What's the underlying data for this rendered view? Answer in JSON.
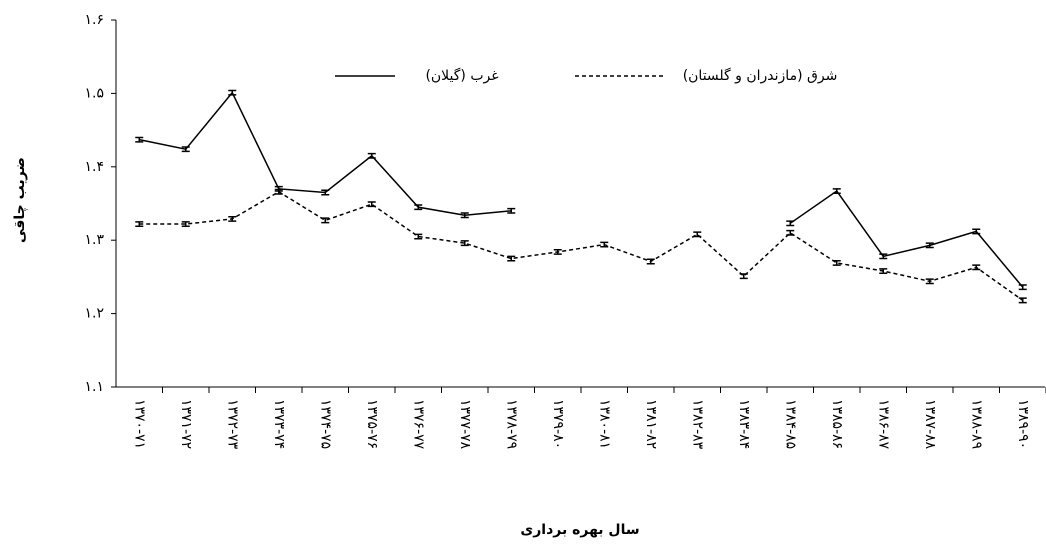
{
  "chart_data": {
    "type": "line",
    "y_label": "ضریب چاقی",
    "x_label": "سال بهره برداری",
    "categories": [
      "۱۳۷۰-۷۱",
      "۱۳۷۱-۷۲",
      "۱۳۷۲-۷۳",
      "۱۳۷۳-۷۴",
      "۱۳۷۴-۷۵",
      "۱۳۷۵-۷۶",
      "۱۳۷۶-۷۷",
      "۱۳۷۷-۷۸",
      "۱۳۷۸-۷۹",
      "۱۳۷۹-۸۰",
      "۱۳۸۰-۸۱",
      "۱۳۸۱-۸۲",
      "۱۳۸۲-۸۳",
      "۱۳۸۳-۸۴",
      "۱۳۸۴-۸۵",
      "۱۳۸۵-۸۶",
      "۱۳۸۶-۸۷",
      "۱۳۸۷-۸۸",
      "۱۳۸۸-۸۹",
      "۱۳۸۹-۹۰"
    ],
    "series": [
      {
        "name": "غرب (گیلان)",
        "color": "#000000",
        "dash": false,
        "values": [
          1.437,
          1.424,
          1.501,
          1.37,
          1.365,
          1.415,
          1.345,
          1.334,
          1.34,
          null,
          null,
          null,
          null,
          null,
          1.323,
          1.367,
          1.278,
          1.293,
          1.312,
          1.236
        ],
        "errors": [
          0.003,
          0.003,
          0.003,
          0.003,
          0.003,
          0.003,
          0.003,
          0.003,
          0.003,
          null,
          null,
          null,
          null,
          null,
          0.003,
          0.003,
          0.003,
          0.003,
          0.003,
          0.003
        ]
      },
      {
        "name": "شرق (مازندران و گلستان)",
        "color": "#000000",
        "dash": true,
        "values": [
          1.322,
          1.322,
          1.329,
          1.366,
          1.327,
          1.349,
          1.305,
          1.296,
          1.275,
          1.284,
          1.294,
          1.271,
          1.308,
          1.251,
          1.31,
          1.269,
          1.258,
          1.244,
          1.263,
          1.218
        ],
        "errors": [
          0.003,
          0.003,
          0.003,
          0.003,
          0.003,
          0.003,
          0.003,
          0.003,
          0.003,
          0.003,
          0.003,
          0.003,
          0.003,
          0.003,
          0.003,
          0.003,
          0.003,
          0.003,
          0.003,
          0.003
        ]
      }
    ],
    "ylim": [
      1.1,
      1.6
    ],
    "yticks": [
      {
        "value": 1.1,
        "label": "۱.۱"
      },
      {
        "value": 1.2,
        "label": "۱.۲"
      },
      {
        "value": 1.3,
        "label": "۱.۳"
      },
      {
        "value": 1.4,
        "label": "۱.۴"
      },
      {
        "value": 1.5,
        "label": "۱.۵"
      },
      {
        "value": 1.6,
        "label": "۱.۶"
      }
    ],
    "grid": false
  }
}
